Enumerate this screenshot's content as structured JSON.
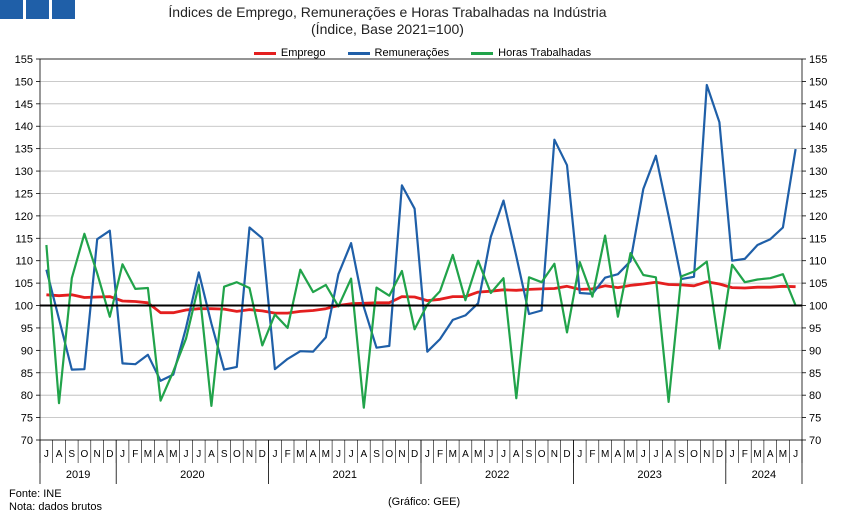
{
  "logo": {
    "icon": "ine-logo-icon"
  },
  "chart_data": {
    "type": "line",
    "title": "Índices de Emprego, Remunerações e Horas Trabalhadas na Indústria",
    "subtitle": "(Índice, Base 2021=100)",
    "ylim": [
      70,
      155
    ],
    "yticks": [
      70,
      75,
      80,
      85,
      90,
      95,
      100,
      105,
      110,
      115,
      120,
      125,
      130,
      135,
      140,
      145,
      150,
      155
    ],
    "y2ticks": [
      70,
      75,
      80,
      85,
      90,
      95,
      100,
      105,
      110,
      115,
      120,
      125,
      130,
      135,
      140,
      145,
      150,
      155
    ],
    "reference_line": 100,
    "grid": "horizontal",
    "legend_position": "top",
    "month_labels": [
      "J",
      "A",
      "S",
      "O",
      "N",
      "D",
      "J",
      "F",
      "M",
      "A",
      "M",
      "J",
      "J",
      "A",
      "S",
      "O",
      "N",
      "D",
      "J",
      "F",
      "M",
      "A",
      "M",
      "J",
      "J",
      "A",
      "S",
      "O",
      "N",
      "D",
      "J",
      "F",
      "M",
      "A",
      "M",
      "J",
      "J",
      "A",
      "S",
      "O",
      "N",
      "D",
      "J",
      "F",
      "M",
      "A",
      "M",
      "J",
      "J",
      "A",
      "S",
      "O",
      "N",
      "D",
      "J",
      "F",
      "M",
      "A",
      "M",
      "J"
    ],
    "years": [
      {
        "label": "2019",
        "start": 0,
        "count": 6
      },
      {
        "label": "2020",
        "start": 6,
        "count": 12
      },
      {
        "label": "2021",
        "start": 18,
        "count": 12
      },
      {
        "label": "2022",
        "start": 30,
        "count": 12
      },
      {
        "label": "2023",
        "start": 42,
        "count": 12
      },
      {
        "label": "2024",
        "start": 54,
        "count": 6
      }
    ],
    "series": [
      {
        "name": "Emprego",
        "color": "#e41f1f",
        "values": [
          102.4,
          102.2,
          102.4,
          101.8,
          101.9,
          102.0,
          101.0,
          100.9,
          100.6,
          98.4,
          98.4,
          99.0,
          99.3,
          99.3,
          99.2,
          98.7,
          99.1,
          98.8,
          98.3,
          98.3,
          98.7,
          98.9,
          99.3,
          100.0,
          100.4,
          100.5,
          100.6,
          100.6,
          102.0,
          101.9,
          101.1,
          101.4,
          102.0,
          102.0,
          103.0,
          103.2,
          103.5,
          103.4,
          103.6,
          103.7,
          103.8,
          104.3,
          103.6,
          103.7,
          104.4,
          104.0,
          104.5,
          104.8,
          105.2,
          104.7,
          104.6,
          104.4,
          105.3,
          104.8,
          104.0,
          103.9,
          104.1,
          104.1,
          104.3,
          104.2
        ]
      },
      {
        "name": "Remunerações",
        "color": "#1f5fa8",
        "values": [
          108.0,
          97.0,
          85.7,
          85.8,
          114.8,
          116.7,
          87.1,
          86.9,
          89.0,
          83.2,
          84.6,
          95.0,
          107.4,
          96.0,
          85.7,
          86.3,
          117.4,
          115.0,
          85.8,
          88.1,
          89.8,
          89.7,
          92.9,
          107.0,
          113.9,
          99.7,
          90.6,
          91.0,
          126.8,
          121.6,
          89.7,
          92.5,
          96.8,
          97.8,
          100.5,
          115.3,
          123.4,
          111.0,
          98.1,
          98.9,
          137.0,
          131.3,
          102.8,
          102.6,
          106.2,
          107.0,
          109.9,
          126.0,
          133.4,
          120.0,
          105.9,
          106.4,
          149.2,
          140.9,
          110.0,
          110.4,
          113.5,
          114.8,
          117.4,
          134.9
        ]
      },
      {
        "name": "Horas Trabalhadas",
        "color": "#21a34a",
        "values": [
          113.5,
          78.2,
          106.1,
          116.0,
          107.2,
          97.5,
          109.2,
          103.7,
          103.9,
          78.8,
          85.3,
          92.6,
          104.6,
          77.6,
          104.2,
          105.2,
          103.9,
          91.1,
          98.0,
          95.0,
          108.0,
          103.0,
          104.6,
          99.8,
          106.0,
          77.2,
          104.0,
          102.2,
          107.7,
          94.7,
          100.2,
          103.2,
          111.3,
          101.2,
          110.0,
          102.8,
          106.1,
          79.3,
          106.3,
          105.2,
          109.3,
          94.0,
          109.7,
          102.0,
          115.6,
          97.5,
          111.7,
          106.8,
          106.3,
          78.5,
          106.5,
          107.6,
          109.8,
          90.4,
          109.1,
          105.2,
          105.8,
          106.1,
          107.0,
          100.0
        ]
      }
    ]
  },
  "footer": {
    "source": "Fonte: INE",
    "note": "Nota: dados brutos",
    "credit": "(Gráfico: GEE)"
  }
}
